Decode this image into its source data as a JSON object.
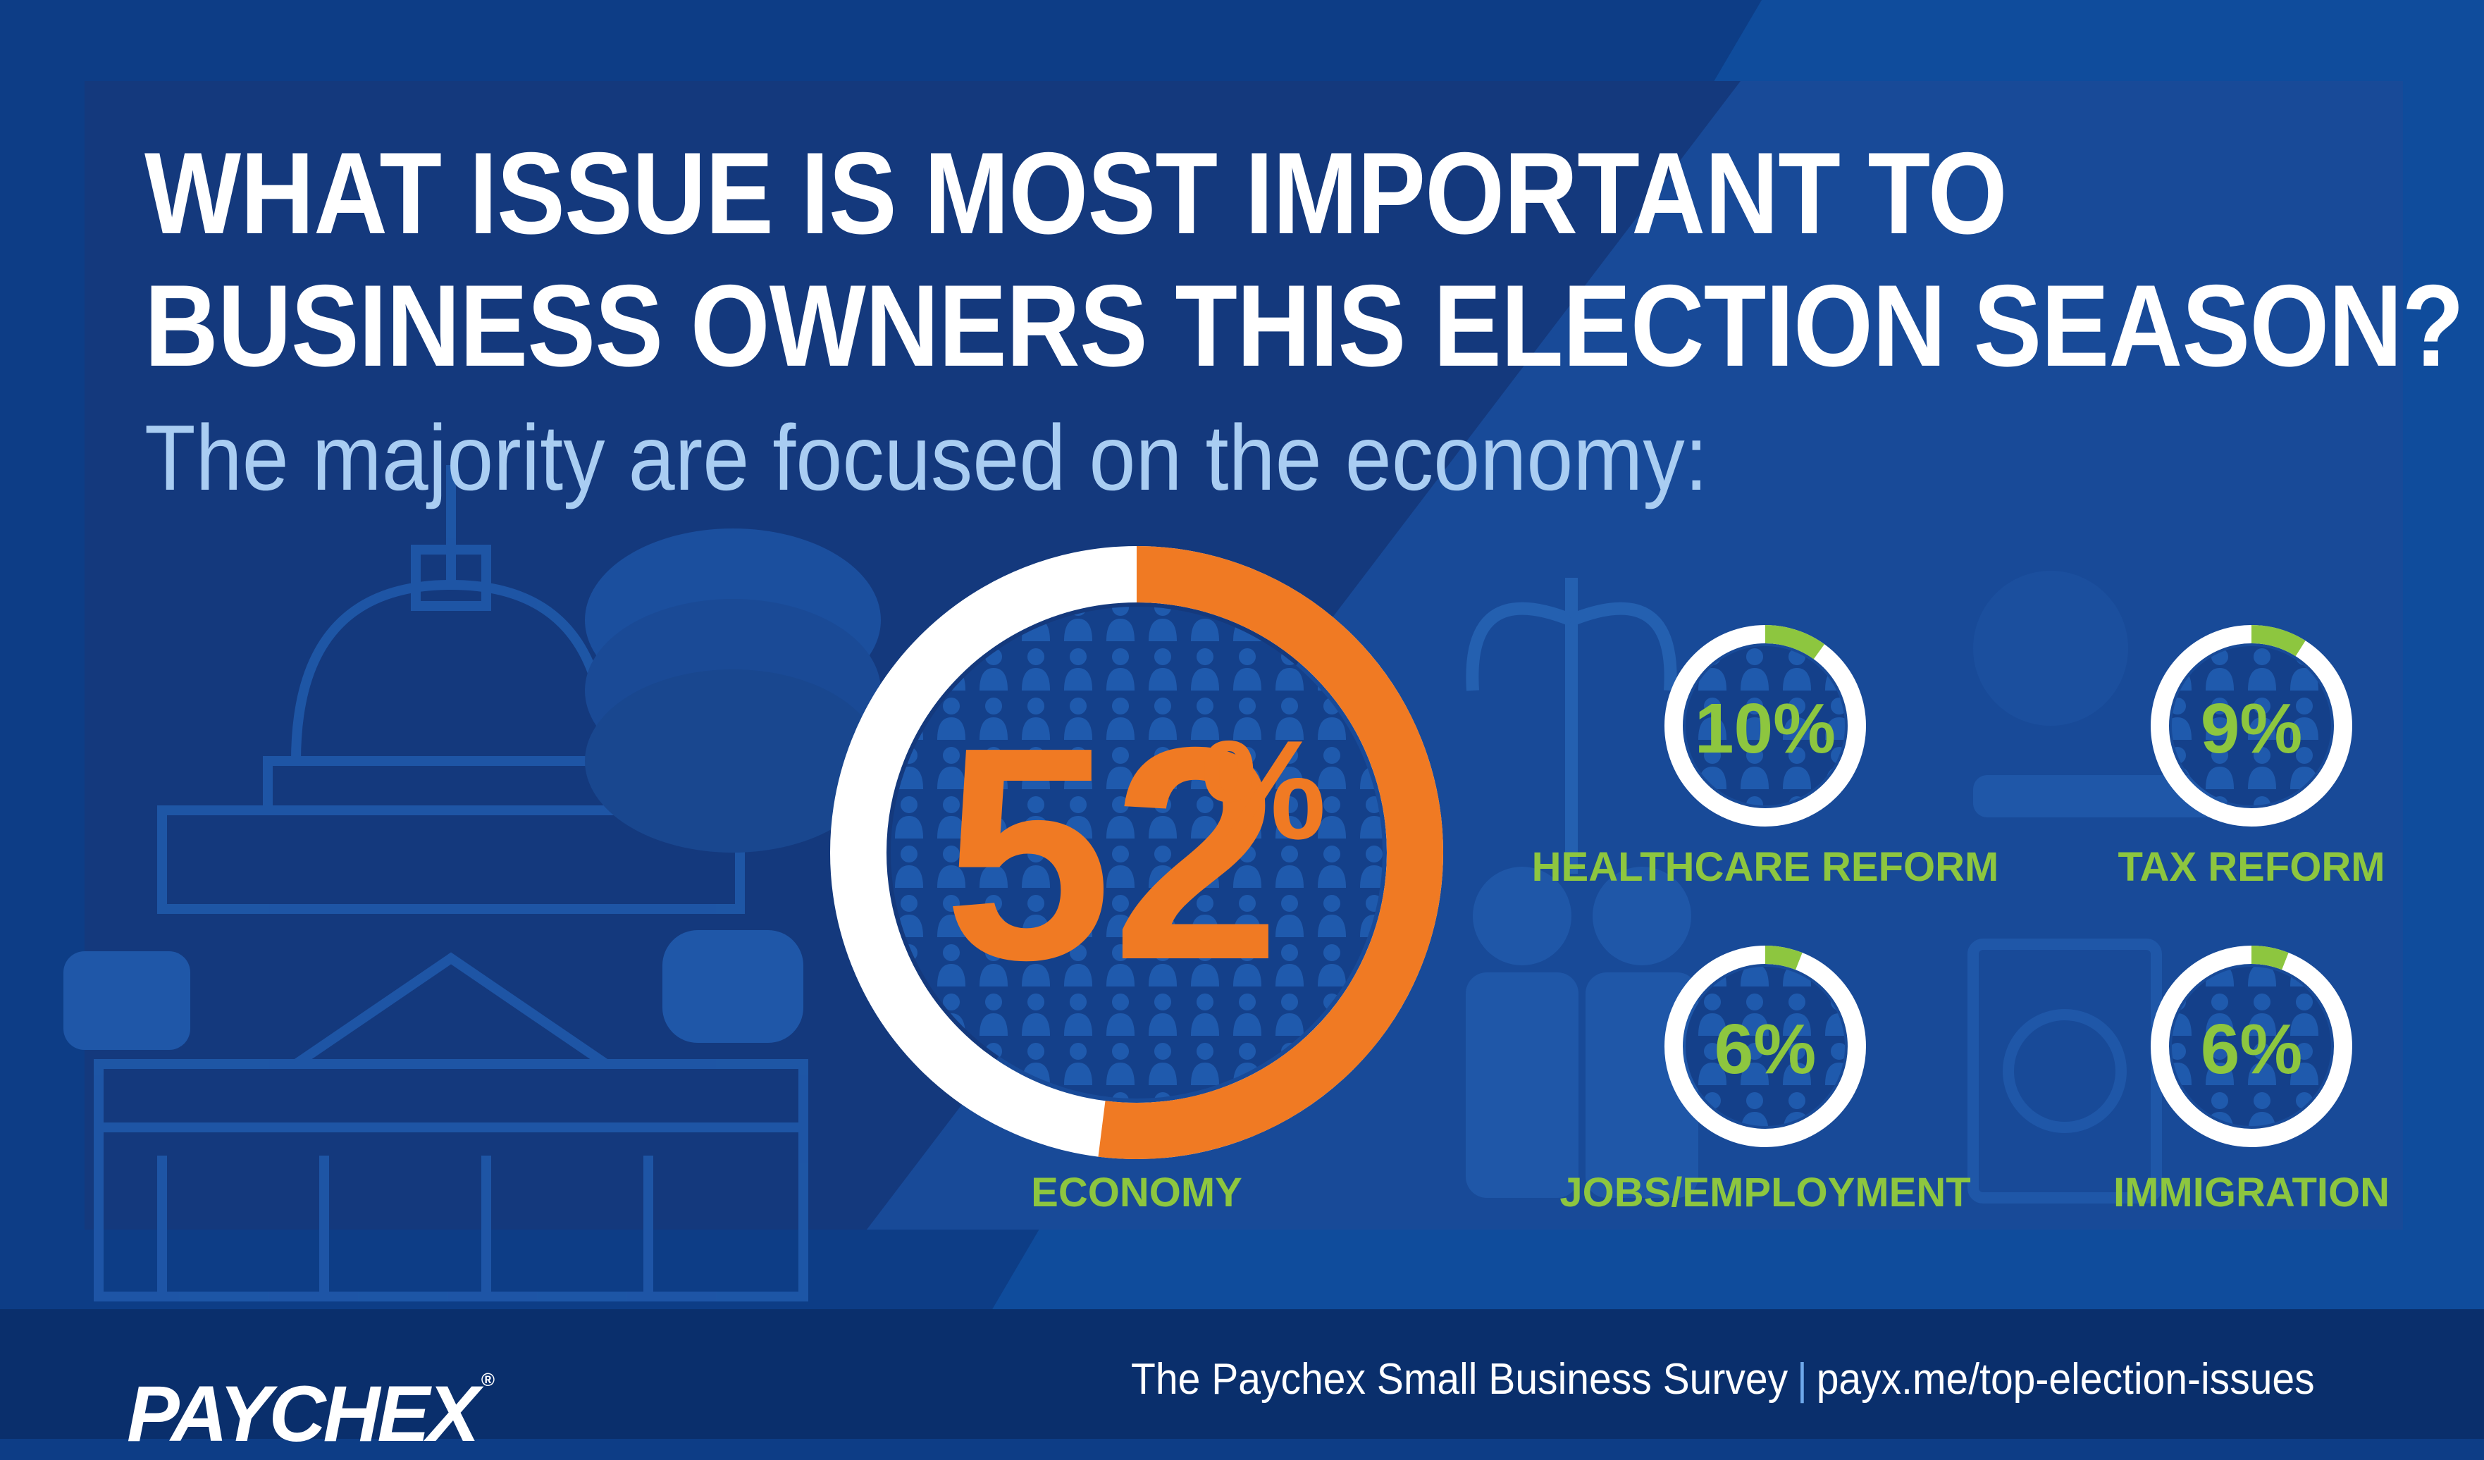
{
  "header": {
    "title_line1": "WHAT ISSUE IS MOST IMPORTANT TO",
    "title_line2": "BUSINESS OWNERS THIS ELECTION SEASON?",
    "subtitle": "The majority are focused on the economy:"
  },
  "footer": {
    "logo": "PAYCHEX",
    "logo_mark": "®",
    "survey": "The Paychex Small Business Survey",
    "separator": "|",
    "url": "payx.me/top-election-issues"
  },
  "colors": {
    "background": "#0d3d86",
    "panel": "#133a7c",
    "orange": "#f07a23",
    "green": "#8dc63f",
    "white": "#ffffff",
    "light_blue": "#a9cdf2"
  },
  "chart_data": {
    "type": "pie",
    "categories": [
      "ECONOMY",
      "HEALTHCARE REFORM",
      "TAX REFORM",
      "JOBS/EMPLOYMENT",
      "IMMIGRATION"
    ],
    "values": [
      52,
      10,
      9,
      6,
      6
    ],
    "labels": [
      "52",
      "10%",
      "9%",
      "6%",
      "6%"
    ],
    "percent_sign": "%",
    "title": "WHAT ISSUE IS MOST IMPORTANT TO BUSINESS OWNERS THIS ELECTION SEASON?",
    "subtitle": "The majority are focused on the economy:",
    "unit": "%"
  }
}
